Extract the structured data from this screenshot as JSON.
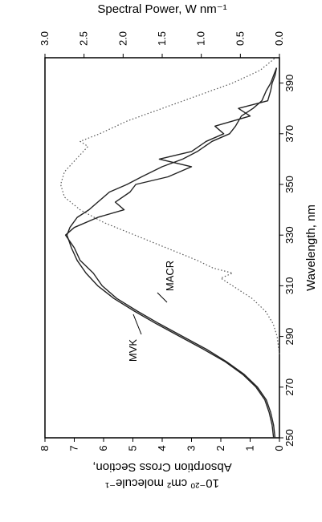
{
  "chart_data": {
    "type": "line",
    "orientation": "rotated-90-ccw",
    "x_axis": {
      "label": "Wavelength, nm",
      "range": [
        250,
        400
      ],
      "ticks": [
        250,
        270,
        290,
        310,
        330,
        350,
        370,
        390
      ]
    },
    "y_axis_left": {
      "label": "Absorption Cross Section, 10⁻²⁰ cm² molecule⁻¹",
      "label_line1": "Absorption Cross Section,",
      "label_line2": "10⁻²⁰ cm² molecule⁻¹",
      "range": [
        0,
        8
      ],
      "ticks": [
        "0",
        "1",
        "2",
        "3",
        "4",
        "5",
        "6",
        "7",
        "8"
      ]
    },
    "y_axis_right": {
      "label": "Spectral Power, W nm⁻¹",
      "range": [
        0,
        3
      ],
      "ticks": [
        "0.0",
        "0.5",
        "1.0",
        "1.5",
        "2.0",
        "2.5",
        "3.0"
      ]
    },
    "grid": false,
    "series": [
      {
        "name": "MVK",
        "axis": "left",
        "style": "solid",
        "color": "#222222",
        "x": [
          250,
          255,
          260,
          265,
          270,
          275,
          280,
          285,
          290,
          295,
          300,
          305,
          310,
          315,
          320,
          325,
          330,
          333,
          337,
          340,
          343,
          347,
          350,
          353,
          357,
          360,
          363,
          367,
          370,
          373,
          377,
          380,
          383,
          387,
          390,
          393,
          396
        ],
        "y": [
          0.2,
          0.25,
          0.35,
          0.5,
          0.8,
          1.25,
          1.85,
          2.6,
          3.4,
          4.2,
          4.95,
          5.65,
          6.2,
          6.6,
          6.9,
          7.1,
          7.25,
          7.15,
          6.9,
          6.5,
          6.2,
          5.8,
          5.2,
          4.7,
          4.0,
          3.3,
          2.8,
          2.3,
          1.7,
          1.5,
          1.3,
          0.9,
          0.6,
          0.45,
          0.3,
          0.2,
          0.1
        ]
      },
      {
        "name": "MACR",
        "axis": "left",
        "style": "solid",
        "color": "#222222",
        "x": [
          250,
          255,
          260,
          265,
          270,
          275,
          280,
          285,
          290,
          295,
          300,
          305,
          310,
          315,
          320,
          325,
          330,
          333,
          337,
          340,
          343,
          347,
          350,
          353,
          357,
          360,
          363,
          367,
          370,
          373,
          377,
          380,
          383,
          387,
          390,
          393,
          396
        ],
        "y": [
          0.15,
          0.2,
          0.3,
          0.45,
          0.75,
          1.2,
          1.8,
          2.5,
          3.3,
          4.1,
          4.85,
          5.55,
          6.05,
          6.35,
          6.8,
          7.0,
          7.3,
          7.0,
          6.2,
          5.3,
          5.6,
          5.1,
          4.9,
          3.8,
          3.0,
          4.1,
          3.0,
          2.5,
          1.9,
          2.2,
          1.0,
          1.4,
          0.4,
          0.3,
          0.25,
          0.15,
          0.1
        ]
      },
      {
        "name": "Spectral Power",
        "axis": "right",
        "style": "dotted",
        "color": "#555555",
        "x": [
          283,
          290,
          295,
          300,
          305,
          310,
          313,
          315,
          317,
          320,
          325,
          330,
          335,
          340,
          345,
          350,
          355,
          360,
          365,
          367,
          370,
          375,
          380,
          385,
          390,
          395,
          400
        ],
        "y": [
          0.0,
          0.03,
          0.08,
          0.18,
          0.35,
          0.6,
          0.75,
          0.6,
          0.85,
          1.05,
          1.45,
          1.85,
          2.25,
          2.55,
          2.75,
          2.8,
          2.75,
          2.6,
          2.45,
          2.55,
          2.3,
          1.95,
          1.5,
          1.05,
          0.6,
          0.25,
          0.05
        ]
      }
    ],
    "annotations": [
      {
        "text": "MVK",
        "series": "MVK"
      },
      {
        "text": "MACR",
        "series": "MACR"
      }
    ]
  }
}
